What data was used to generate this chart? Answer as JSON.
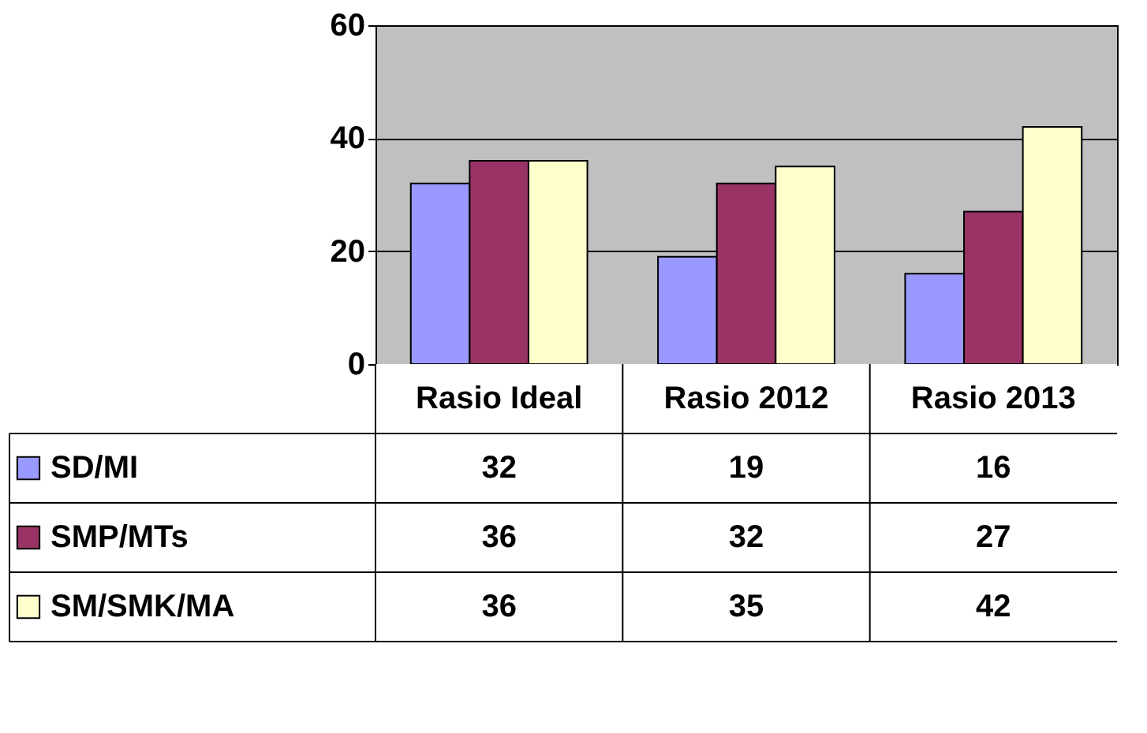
{
  "chart_data": {
    "type": "bar",
    "categories": [
      "Rasio Ideal",
      "Rasio 2012",
      "Rasio 2013"
    ],
    "series": [
      {
        "name": "SD/MI",
        "color": "#9999ff",
        "values": [
          32,
          19,
          16
        ]
      },
      {
        "name": "SMP/MTs",
        "color": "#993366",
        "values": [
          36,
          32,
          27
        ]
      },
      {
        "name": "SM/SMK/MA",
        "color": "#ffffcc",
        "values": [
          36,
          35,
          42
        ]
      }
    ],
    "ylim": [
      0,
      60
    ],
    "yticks": [
      0,
      20,
      40,
      60
    ],
    "grid": "y",
    "legend": "bottom left",
    "data_labels": true
  }
}
